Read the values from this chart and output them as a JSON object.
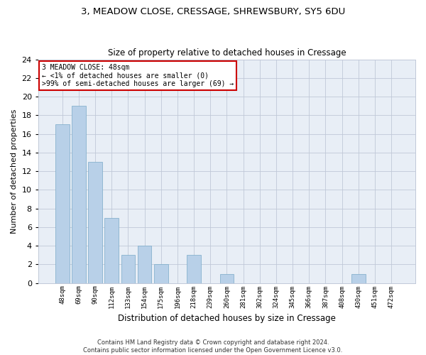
{
  "title": "3, MEADOW CLOSE, CRESSAGE, SHREWSBURY, SY5 6DU",
  "subtitle": "Size of property relative to detached houses in Cressage",
  "xlabel": "Distribution of detached houses by size in Cressage",
  "ylabel": "Number of detached properties",
  "bar_color": "#b8d0e8",
  "bar_edge_color": "#7aaac8",
  "background_color": "#e8eef6",
  "categories": [
    "48sqm",
    "69sqm",
    "90sqm",
    "112sqm",
    "133sqm",
    "154sqm",
    "175sqm",
    "196sqm",
    "218sqm",
    "239sqm",
    "260sqm",
    "281sqm",
    "302sqm",
    "324sqm",
    "345sqm",
    "366sqm",
    "387sqm",
    "408sqm",
    "430sqm",
    "451sqm",
    "472sqm"
  ],
  "values": [
    17,
    19,
    13,
    7,
    3,
    4,
    2,
    0,
    3,
    0,
    1,
    0,
    0,
    0,
    0,
    0,
    0,
    0,
    1,
    0,
    0
  ],
  "ylim": [
    0,
    24
  ],
  "yticks": [
    0,
    2,
    4,
    6,
    8,
    10,
    12,
    14,
    16,
    18,
    20,
    22,
    24
  ],
  "annotation_line1": "3 MEADOW CLOSE: 48sqm",
  "annotation_line2": "← <1% of detached houses are smaller (0)",
  "annotation_line3": ">99% of semi-detached houses are larger (69) →",
  "annotation_box_color": "#ffffff",
  "annotation_border_color": "#cc0000",
  "footer_line1": "Contains HM Land Registry data © Crown copyright and database right 2024.",
  "footer_line2": "Contains public sector information licensed under the Open Government Licence v3.0."
}
